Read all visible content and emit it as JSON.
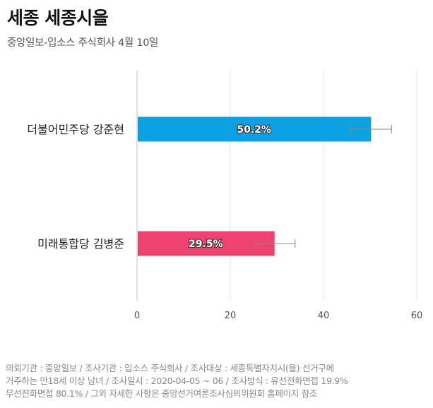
{
  "title": "세종 세종시을",
  "subtitle": "중앙일보-입소스 주식회사 4월 10일",
  "chart_data": {
    "type": "bar",
    "orientation": "horizontal",
    "categories": [
      "더불어민주당 강준현",
      "미래통합당 김병준"
    ],
    "values": [
      50.2,
      29.5
    ],
    "value_labels": [
      "50.2%",
      "29.5%"
    ],
    "error_bars": [
      [
        45.8,
        54.6
      ],
      [
        25.1,
        33.9
      ]
    ],
    "colors": [
      "#0aa0e2",
      "#ef4270"
    ],
    "xlim": [
      0,
      63
    ],
    "xticks": [
      0,
      20,
      40,
      60
    ],
    "grid": true,
    "title": "",
    "xlabel": "",
    "ylabel": ""
  },
  "footnote": {
    "lines": [
      "의뢰기관 : 중앙일보 / 조사기관 : 입소스 주식회사 / 조사대상 : 세종특별자치시(을) 선거구에",
      "거주하는 만18세 이상 남녀 / 조사일시 : 2020-04-05 ~ 06 / 조사방식 : 유선전화면접 19.9%",
      "무선전화면접 80.1% / 그외 자세한 사항은 중앙선거여론조사심의위원회 홈페이지 참조"
    ]
  }
}
